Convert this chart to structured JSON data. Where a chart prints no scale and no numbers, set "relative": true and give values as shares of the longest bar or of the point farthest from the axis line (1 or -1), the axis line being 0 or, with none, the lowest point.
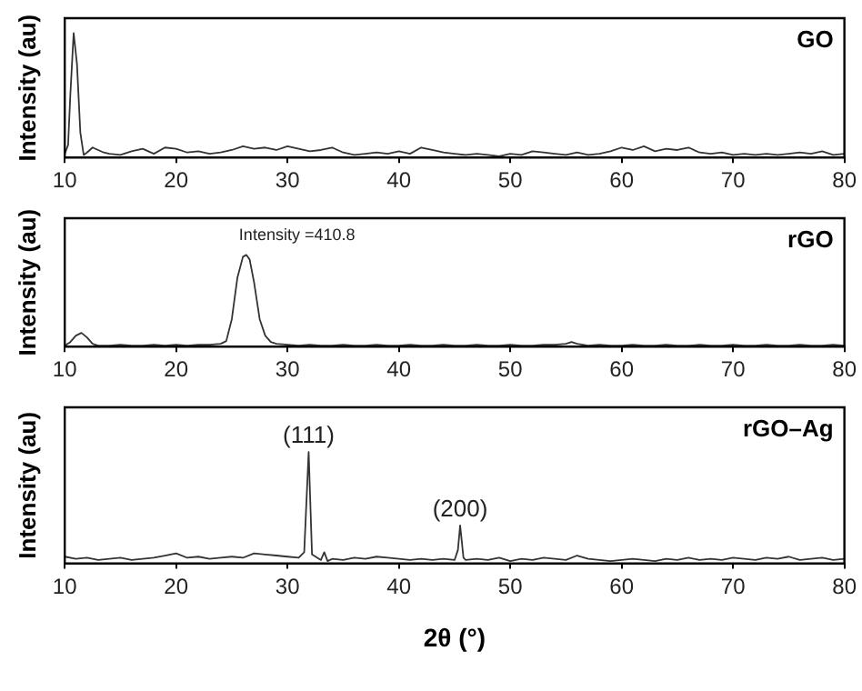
{
  "chart_data": [
    {
      "type": "line",
      "ylabel": "Intensity (au)",
      "relative": true,
      "xlim": [
        10,
        80
      ],
      "xticks": [
        10,
        20,
        30,
        40,
        50,
        60,
        70,
        80
      ],
      "marker": "none",
      "line_style": "solid",
      "series": [
        {
          "name": "GO",
          "color": "#333333",
          "x": [
            10,
            10.3,
            10.5,
            10.8,
            11.1,
            11.4,
            11.7,
            12,
            12.5,
            13,
            13.5,
            14,
            15,
            16,
            17,
            18,
            19,
            20,
            21,
            22,
            23,
            24,
            25,
            26,
            27,
            28,
            29,
            30,
            31,
            32,
            33,
            34,
            35,
            36,
            37,
            38,
            39,
            40,
            41,
            42,
            43,
            44,
            45,
            46,
            47,
            48,
            49,
            50,
            51,
            52,
            53,
            54,
            55,
            56,
            57,
            58,
            59,
            60,
            61,
            62,
            63,
            64,
            65,
            66,
            67,
            68,
            69,
            70,
            71,
            72,
            73,
            74,
            75,
            76,
            77,
            78,
            79,
            80
          ],
          "values": [
            0.03,
            0.1,
            0.5,
            1,
            0.75,
            0.2,
            0.02,
            0.04,
            0.08,
            0.06,
            0.04,
            0.03,
            0.02,
            0.05,
            0.07,
            0.03,
            0.08,
            0.07,
            0.04,
            0.05,
            0.03,
            0.04,
            0.06,
            0.09,
            0.07,
            0.08,
            0.06,
            0.09,
            0.07,
            0.05,
            0.06,
            0.08,
            0.04,
            0.02,
            0.03,
            0.04,
            0.03,
            0.05,
            0.03,
            0.08,
            0.06,
            0.04,
            0.03,
            0.02,
            0.03,
            0.02,
            0.01,
            0.03,
            0.02,
            0.05,
            0.04,
            0.03,
            0.02,
            0.04,
            0.02,
            0.03,
            0.05,
            0.08,
            0.06,
            0.09,
            0.05,
            0.07,
            0.06,
            0.08,
            0.04,
            0.03,
            0.04,
            0.02,
            0.03,
            0.02,
            0.03,
            0.02,
            0.03,
            0.04,
            0.03,
            0.05,
            0.02,
            0.03
          ]
        }
      ]
    },
    {
      "type": "line",
      "ylabel": "Intensity (au)",
      "relative": true,
      "xlim": [
        10,
        80
      ],
      "xticks": [
        10,
        20,
        30,
        40,
        50,
        60,
        70,
        80
      ],
      "marker": "none",
      "line_style": "solid",
      "annotations": [
        {
          "text": "Intensity =410.8",
          "x": 26.3,
          "y": 1
        }
      ],
      "series": [
        {
          "name": "rGO",
          "color": "#333333",
          "x": [
            10,
            10.5,
            11,
            11.5,
            12,
            12.5,
            13,
            14,
            15,
            16,
            17,
            18,
            19,
            20,
            21,
            22,
            23,
            24,
            24.5,
            25,
            25.5,
            26,
            26.3,
            26.6,
            27,
            27.5,
            28,
            28.5,
            29,
            30,
            31,
            32,
            33,
            34,
            35,
            36,
            37,
            38,
            39,
            40,
            41,
            42,
            43,
            44,
            45,
            46,
            47,
            48,
            49,
            50,
            51,
            52,
            53,
            54,
            55,
            55.5,
            56,
            57,
            58,
            59,
            60,
            61,
            62,
            63,
            64,
            65,
            66,
            67,
            68,
            69,
            70,
            71,
            72,
            73,
            74,
            75,
            76,
            77,
            78,
            79,
            80
          ],
          "values": [
            0.01,
            0.05,
            0.12,
            0.15,
            0.1,
            0.03,
            0.01,
            0.01,
            0.02,
            0.01,
            0.01,
            0.02,
            0.01,
            0.02,
            0.01,
            0.02,
            0.02,
            0.03,
            0.06,
            0.3,
            0.75,
            0.98,
            1,
            0.95,
            0.7,
            0.3,
            0.12,
            0.05,
            0.03,
            0.02,
            0.01,
            0.02,
            0.01,
            0.01,
            0.02,
            0.01,
            0.01,
            0.02,
            0.01,
            0.01,
            0.02,
            0.01,
            0.01,
            0.02,
            0.01,
            0.01,
            0.02,
            0.01,
            0.01,
            0.02,
            0.01,
            0.01,
            0.02,
            0.02,
            0.03,
            0.05,
            0.03,
            0.01,
            0.02,
            0.01,
            0.01,
            0.02,
            0.01,
            0.01,
            0.02,
            0.01,
            0.01,
            0.02,
            0.01,
            0.01,
            0.02,
            0.01,
            0.01,
            0.02,
            0.01,
            0.01,
            0.02,
            0.01,
            0.01,
            0.02,
            0.01
          ]
        }
      ]
    },
    {
      "type": "line",
      "ylabel": "Intensity (au)",
      "xlabel": "2θ (°)",
      "relative": true,
      "xlim": [
        10,
        80
      ],
      "xticks": [
        10,
        20,
        30,
        40,
        50,
        60,
        70,
        80
      ],
      "marker": "none",
      "line_style": "solid",
      "annotations": [
        {
          "text": "(111)",
          "x": 31.9,
          "y": 1
        },
        {
          "text": "(200)",
          "x": 45.5,
          "y": 0.34
        }
      ],
      "series": [
        {
          "name": "rGO–Ag",
          "color": "#333333",
          "x": [
            10,
            11,
            12,
            13,
            14,
            15,
            16,
            17,
            18,
            19,
            20,
            21,
            22,
            23,
            24,
            25,
            26,
            27,
            28,
            29,
            30,
            31,
            31.5,
            31.9,
            32.2,
            33,
            33.3,
            33.6,
            34,
            35,
            36,
            37,
            38,
            39,
            40,
            41,
            42,
            43,
            44,
            45,
            45.3,
            45.5,
            45.8,
            46,
            47,
            48,
            49,
            50,
            51,
            52,
            53,
            54,
            55,
            56,
            57,
            58,
            59,
            60,
            61,
            62,
            63,
            64,
            65,
            66,
            67,
            68,
            69,
            70,
            71,
            72,
            73,
            74,
            75,
            76,
            77,
            78,
            79,
            80
          ],
          "values": [
            0.06,
            0.04,
            0.05,
            0.03,
            0.04,
            0.05,
            0.03,
            0.04,
            0.05,
            0.07,
            0.09,
            0.05,
            0.06,
            0.04,
            0.05,
            0.06,
            0.05,
            0.09,
            0.08,
            0.07,
            0.06,
            0.05,
            0.1,
            1,
            0.08,
            0.03,
            0.1,
            0.02,
            0.04,
            0.03,
            0.05,
            0.04,
            0.06,
            0.05,
            0.04,
            0.03,
            0.04,
            0.03,
            0.04,
            0.03,
            0.12,
            0.34,
            0.05,
            0.03,
            0.04,
            0.03,
            0.05,
            0.02,
            0.04,
            0.03,
            0.05,
            0.04,
            0.03,
            0.07,
            0.04,
            0.03,
            0.02,
            0.03,
            0.04,
            0.03,
            0.02,
            0.04,
            0.03,
            0.05,
            0.03,
            0.04,
            0.03,
            0.05,
            0.04,
            0.03,
            0.05,
            0.04,
            0.06,
            0.03,
            0.04,
            0.05,
            0.03,
            0.04
          ]
        }
      ]
    }
  ]
}
